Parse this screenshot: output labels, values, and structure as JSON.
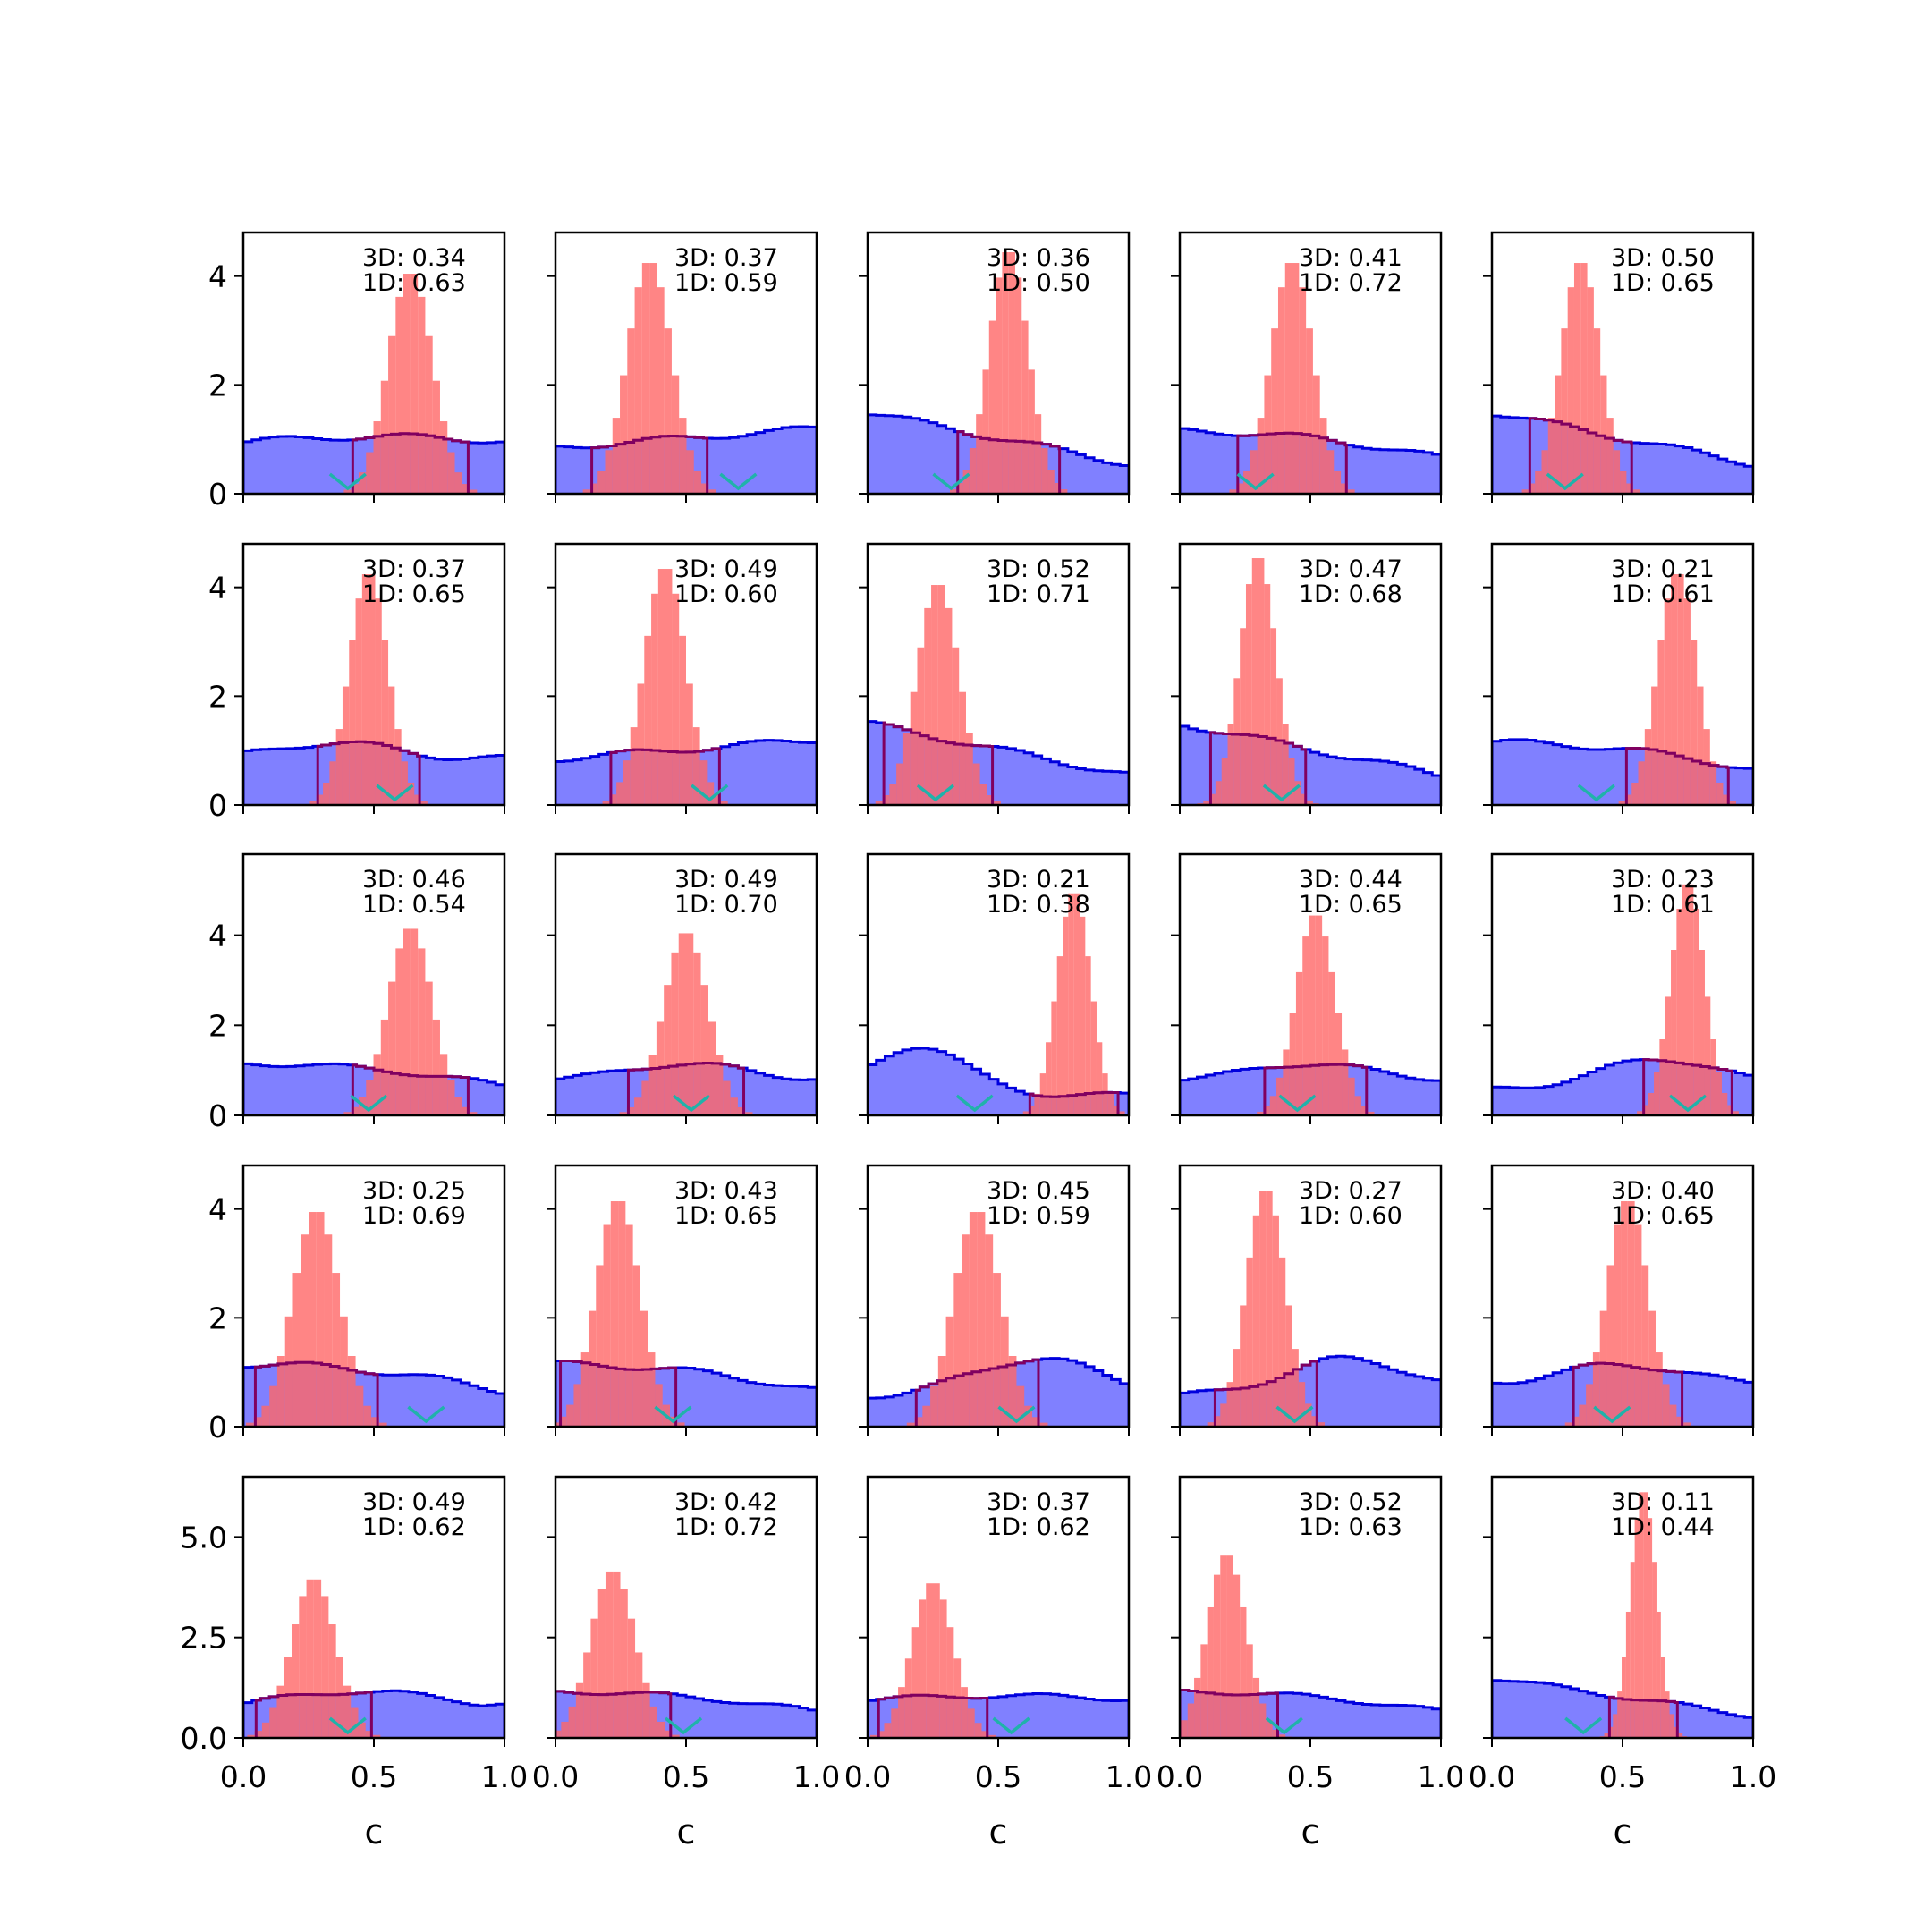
{
  "figure": {
    "columns": 5,
    "rows": 5,
    "colors": {
      "prior_fill": "#8080ff",
      "prior_edge": "#0000dd",
      "posterior_fill": "#ff6666",
      "overlap_edge": "#800060",
      "marker": "#20b2aa"
    }
  },
  "chart_data": {
    "type": "histogram-grid",
    "xlabel": "c",
    "xlim": [
      0.0,
      1.0
    ],
    "xticks": [
      "0.0",
      "0.5",
      "1.0"
    ],
    "row_axes": [
      {
        "ylim": [
          0,
          4.8
        ],
        "yticks": [
          0,
          2,
          4
        ],
        "ytick_labels": [
          "0",
          "2",
          "4"
        ]
      },
      {
        "ylim": [
          0,
          4.8
        ],
        "yticks": [
          0,
          2,
          4
        ],
        "ytick_labels": [
          "0",
          "2",
          "4"
        ]
      },
      {
        "ylim": [
          0,
          5.8
        ],
        "yticks": [
          0,
          2,
          4
        ],
        "ytick_labels": [
          "0",
          "2",
          "4"
        ]
      },
      {
        "ylim": [
          0,
          4.8
        ],
        "yticks": [
          0,
          2,
          4
        ],
        "ytick_labels": [
          "0",
          "2",
          "4"
        ]
      },
      {
        "ylim": [
          0,
          6.5
        ],
        "yticks": [
          0,
          2.5,
          5.0
        ],
        "ytick_labels": [
          "0.0",
          "2.5",
          "5.0"
        ]
      }
    ],
    "panels": [
      {
        "label_3d": "3D: 0.34",
        "label_1d": "1D: 0.63",
        "post_center": 0.64,
        "post_sd": 0.085,
        "post_peak": 4.1,
        "prior_shape": "flat",
        "prior_level": 1.0,
        "marker_x": 0.4
      },
      {
        "label_3d": "3D: 0.37",
        "label_1d": "1D: 0.59",
        "post_center": 0.36,
        "post_sd": 0.085,
        "post_peak": 4.3,
        "prior_shape": "rising",
        "prior_level": 1.0,
        "marker_x": 0.7
      },
      {
        "label_3d": "3D: 0.36",
        "label_1d": "1D: 0.50",
        "post_center": 0.54,
        "post_sd": 0.075,
        "post_peak": 4.5,
        "prior_shape": "falling",
        "prior_level": 1.0,
        "marker_x": 0.32
      },
      {
        "label_3d": "3D: 0.41",
        "label_1d": "1D: 0.72",
        "post_center": 0.43,
        "post_sd": 0.08,
        "post_peak": 4.3,
        "prior_shape": "falling_mild",
        "prior_level": 1.0,
        "marker_x": 0.29
      },
      {
        "label_3d": "3D: 0.50",
        "label_1d": "1D: 0.65",
        "post_center": 0.34,
        "post_sd": 0.075,
        "post_peak": 4.3,
        "prior_shape": "falling",
        "prior_level": 1.0,
        "marker_x": 0.28
      },
      {
        "label_3d": "3D: 0.37",
        "label_1d": "1D: 0.65",
        "post_center": 0.48,
        "post_sd": 0.075,
        "post_peak": 4.3,
        "prior_shape": "bump_left",
        "prior_level": 1.0,
        "marker_x": 0.58
      },
      {
        "label_3d": "3D: 0.49",
        "label_1d": "1D: 0.60",
        "post_center": 0.42,
        "post_sd": 0.08,
        "post_peak": 4.4,
        "prior_shape": "rising",
        "prior_level": 1.0,
        "marker_x": 0.59
      },
      {
        "label_3d": "3D: 0.52",
        "label_1d": "1D: 0.71",
        "post_center": 0.27,
        "post_sd": 0.08,
        "post_peak": 4.1,
        "prior_shape": "falling",
        "prior_level": 1.0,
        "marker_x": 0.26
      },
      {
        "label_3d": "3D: 0.47",
        "label_1d": "1D: 0.68",
        "post_center": 0.3,
        "post_sd": 0.07,
        "post_peak": 4.6,
        "prior_shape": "falling",
        "prior_level": 1.0,
        "marker_x": 0.39
      },
      {
        "label_3d": "3D: 0.21",
        "label_1d": "1D: 0.61",
        "post_center": 0.71,
        "post_sd": 0.075,
        "post_peak": 4.3,
        "prior_shape": "falling_mild",
        "prior_level": 1.0,
        "marker_x": 0.4
      },
      {
        "label_3d": "3D: 0.46",
        "label_1d": "1D: 0.54",
        "post_center": 0.64,
        "post_sd": 0.085,
        "post_peak": 4.2,
        "prior_shape": "falling_mild",
        "prior_level": 1.0,
        "marker_x": 0.48
      },
      {
        "label_3d": "3D: 0.49",
        "label_1d": "1D: 0.70",
        "post_center": 0.5,
        "post_sd": 0.085,
        "post_peak": 4.1,
        "prior_shape": "bump_mid",
        "prior_level": 1.0,
        "marker_x": 0.52
      },
      {
        "label_3d": "3D: 0.21",
        "label_1d": "1D: 0.38",
        "post_center": 0.79,
        "post_sd": 0.065,
        "post_peak": 5.0,
        "prior_shape": "bump_left_strong",
        "prior_level": 1.0,
        "marker_x": 0.41
      },
      {
        "label_3d": "3D: 0.44",
        "label_1d": "1D: 0.65",
        "post_center": 0.52,
        "post_sd": 0.075,
        "post_peak": 4.5,
        "prior_shape": "bump_mid",
        "prior_level": 1.0,
        "marker_x": 0.45
      },
      {
        "label_3d": "3D: 0.23",
        "label_1d": "1D: 0.61",
        "post_center": 0.75,
        "post_sd": 0.065,
        "post_peak": 5.2,
        "prior_shape": "bump_right",
        "prior_level": 1.0,
        "marker_x": 0.75
      },
      {
        "label_3d": "3D: 0.25",
        "label_1d": "1D: 0.69",
        "post_center": 0.28,
        "post_sd": 0.09,
        "post_peak": 4.0,
        "prior_shape": "falling_mild",
        "prior_level": 1.0,
        "marker_x": 0.7
      },
      {
        "label_3d": "3D: 0.43",
        "label_1d": "1D: 0.65",
        "post_center": 0.24,
        "post_sd": 0.085,
        "post_peak": 4.2,
        "prior_shape": "falling_mild",
        "prior_level": 1.0,
        "marker_x": 0.45
      },
      {
        "label_3d": "3D: 0.45",
        "label_1d": "1D: 0.59",
        "post_center": 0.42,
        "post_sd": 0.09,
        "post_peak": 4.0,
        "prior_shape": "bump_right",
        "prior_level": 1.0,
        "marker_x": 0.57
      },
      {
        "label_3d": "3D: 0.27",
        "label_1d": "1D: 0.60",
        "post_center": 0.33,
        "post_sd": 0.075,
        "post_peak": 4.4,
        "prior_shape": "bump_right",
        "prior_level": 1.0,
        "marker_x": 0.44
      },
      {
        "label_3d": "3D: 0.40",
        "label_1d": "1D: 0.65",
        "post_center": 0.52,
        "post_sd": 0.08,
        "post_peak": 4.2,
        "prior_shape": "bump_mid",
        "prior_level": 1.0,
        "marker_x": 0.46
      },
      {
        "label_3d": "3D: 0.49",
        "label_1d": "1D: 0.62",
        "post_center": 0.27,
        "post_sd": 0.085,
        "post_peak": 4.0,
        "prior_shape": "rising_mild",
        "prior_level": 1.0,
        "marker_x": 0.4
      },
      {
        "label_3d": "3D: 0.42",
        "label_1d": "1D: 0.72",
        "post_center": 0.22,
        "post_sd": 0.085,
        "post_peak": 4.2,
        "prior_shape": "falling_mild",
        "prior_level": 1.0,
        "marker_x": 0.49
      },
      {
        "label_3d": "3D: 0.37",
        "label_1d": "1D: 0.62",
        "post_center": 0.25,
        "post_sd": 0.08,
        "post_peak": 3.9,
        "prior_shape": "flat",
        "prior_level": 1.0,
        "marker_x": 0.55
      },
      {
        "label_3d": "3D: 0.52",
        "label_1d": "1D: 0.63",
        "post_center": 0.18,
        "post_sd": 0.075,
        "post_peak": 4.6,
        "prior_shape": "falling_mild",
        "prior_level": 1.0,
        "marker_x": 0.4
      },
      {
        "label_3d": "3D: 0.11",
        "label_1d": "1D: 0.44",
        "post_center": 0.58,
        "post_sd": 0.05,
        "post_peak": 6.2,
        "prior_shape": "falling",
        "prior_level": 1.0,
        "marker_x": 0.35
      }
    ]
  }
}
